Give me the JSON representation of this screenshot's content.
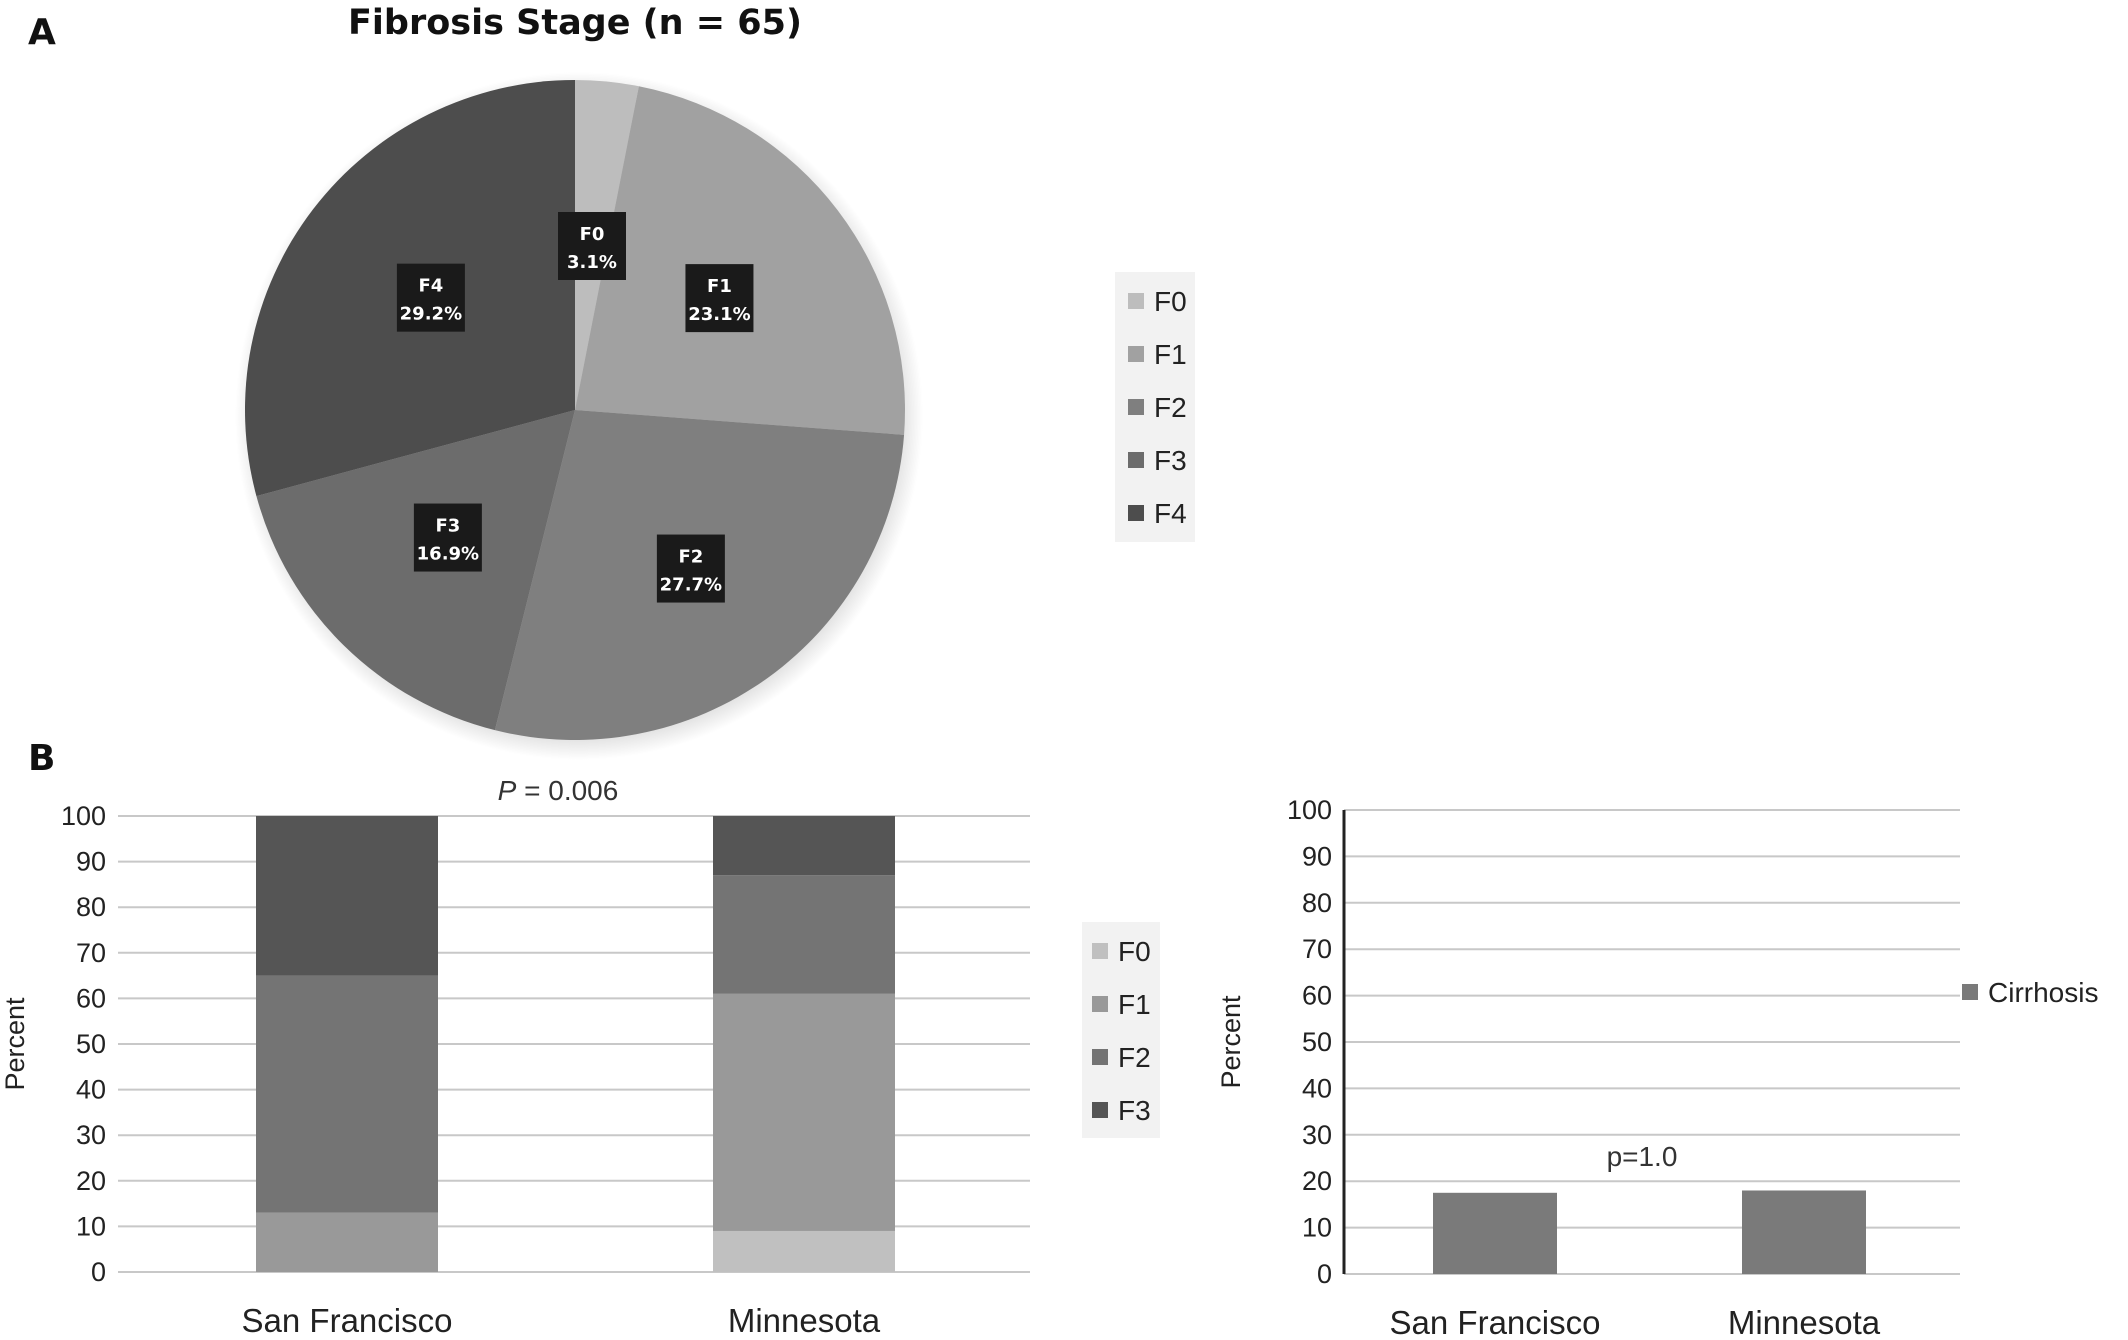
{
  "panels": {
    "a_label": "A",
    "b_label": "B"
  },
  "chart_data": [
    {
      "type": "pie",
      "title": "Fibrosis Stage (n = 65)",
      "categories": [
        "F0",
        "F1",
        "F2",
        "F3",
        "F4"
      ],
      "values": [
        3.1,
        23.1,
        27.7,
        16.9,
        29.2
      ],
      "data_labels": [
        "3.1%",
        "23.1%",
        "27.7%",
        "16.9%",
        "29.2%"
      ],
      "colors": [
        "#bdbdbd",
        "#a1a1a1",
        "#7f7f7f",
        "#6c6c6c",
        "#4d4d4d"
      ],
      "legend": "right"
    },
    {
      "type": "bar",
      "stacked": true,
      "categories": [
        "San Francisco",
        "Minnesota"
      ],
      "series": [
        {
          "name": "F0",
          "values": [
            0,
            9
          ],
          "color": "#c0c0c0"
        },
        {
          "name": "F1",
          "values": [
            13,
            52
          ],
          "color": "#999999"
        },
        {
          "name": "F2",
          "values": [
            52,
            26
          ],
          "color": "#747474"
        },
        {
          "name": "F3",
          "values": [
            35,
            13
          ],
          "color": "#555555"
        }
      ],
      "ylabel": "Percent",
      "ylim": [
        0,
        100
      ],
      "yticks": [
        0,
        10,
        20,
        30,
        40,
        50,
        60,
        70,
        80,
        90,
        100
      ],
      "grid": true,
      "legend": "right",
      "annotation": {
        "italic": "P",
        "text": " = 0.006"
      }
    },
    {
      "type": "bar",
      "categories": [
        "San Francisco",
        "Minnesota"
      ],
      "series": [
        {
          "name": "Cirrhosis",
          "values": [
            17.5,
            18
          ],
          "color": "#7a7a7a"
        }
      ],
      "ylabel": "Percent",
      "ylim": [
        0,
        100
      ],
      "yticks": [
        0,
        10,
        20,
        30,
        40,
        50,
        60,
        70,
        80,
        90,
        100
      ],
      "grid": true,
      "legend": "right",
      "annotation": {
        "text": "p=1.0"
      }
    }
  ]
}
